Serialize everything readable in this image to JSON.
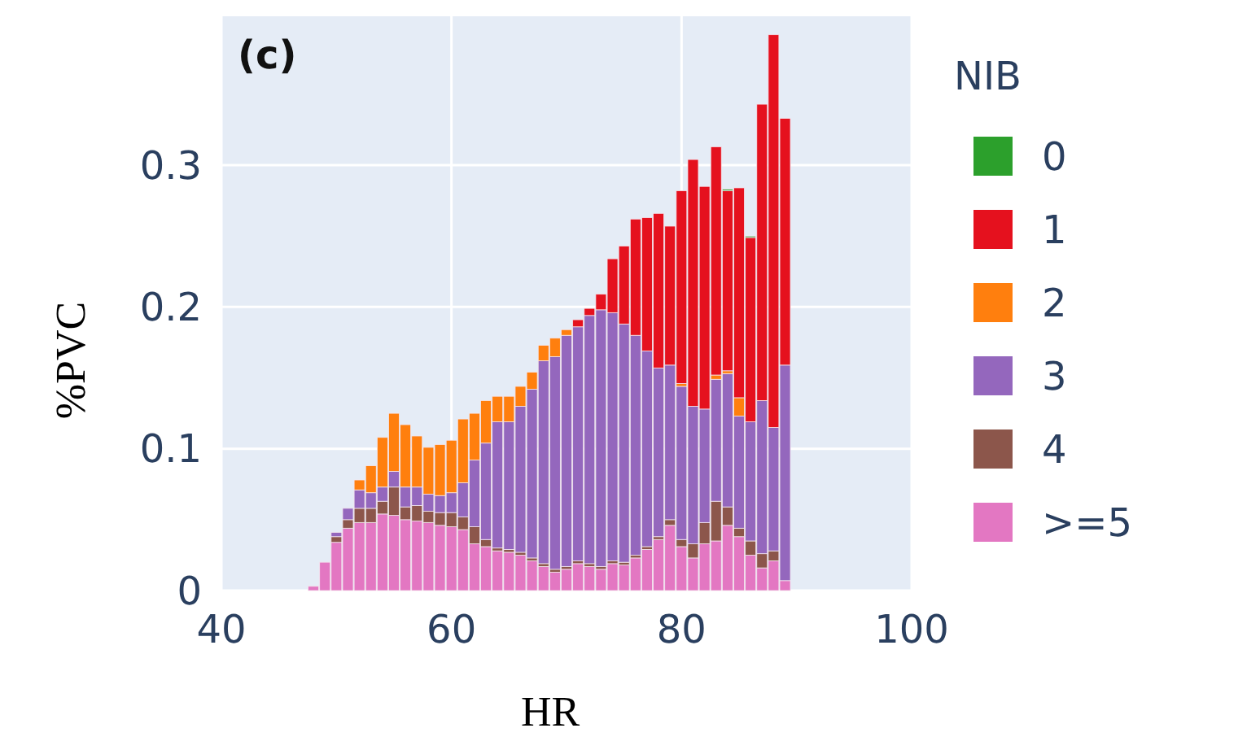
{
  "chart_data": {
    "type": "bar",
    "title": "(c)",
    "xlabel": "HR",
    "ylabel": "%PVC",
    "legend_title": "NIB",
    "stacked": true,
    "legend": "right",
    "grid": true,
    "x": [
      48,
      49,
      50,
      51,
      52,
      53,
      54,
      55,
      56,
      57,
      58,
      59,
      60,
      61,
      62,
      63,
      64,
      65,
      66,
      67,
      68,
      69,
      70,
      71,
      72,
      73,
      74,
      75,
      76,
      77,
      78,
      79,
      80,
      81,
      82,
      83,
      84,
      85,
      86,
      87,
      88,
      89
    ],
    "xlim": [
      40,
      100
    ],
    "xticks": [
      40,
      60,
      80,
      100
    ],
    "ylim": [
      0,
      0.405
    ],
    "yticks": [
      0,
      0.1,
      0.2,
      0.3
    ],
    "series": [
      {
        "name": ">=5",
        "color": "#e377c2",
        "values": [
          0.003,
          0.02,
          0.034,
          0.044,
          0.048,
          0.048,
          0.054,
          0.053,
          0.05,
          0.049,
          0.048,
          0.046,
          0.045,
          0.043,
          0.033,
          0.031,
          0.028,
          0.027,
          0.025,
          0.021,
          0.017,
          0.013,
          0.015,
          0.019,
          0.017,
          0.015,
          0.019,
          0.018,
          0.023,
          0.029,
          0.036,
          0.046,
          0.031,
          0.023,
          0.033,
          0.035,
          0.046,
          0.038,
          0.025,
          0.016,
          0.021,
          0.007
        ]
      },
      {
        "name": "4",
        "color": "#8c564b",
        "values": [
          0,
          0,
          0.004,
          0.006,
          0.01,
          0.01,
          0.009,
          0.02,
          0.009,
          0.011,
          0.008,
          0.009,
          0.01,
          0.009,
          0.012,
          0.005,
          0.002,
          0.002,
          0.002,
          0.002,
          0.002,
          0.002,
          0.002,
          0.002,
          0.002,
          0.002,
          0.002,
          0.002,
          0.002,
          0.002,
          0.002,
          0.004,
          0.005,
          0.01,
          0.015,
          0.028,
          0.013,
          0.006,
          0.01,
          0.01,
          0.007,
          0
        ]
      },
      {
        "name": "3",
        "color": "#9467bd",
        "values": [
          0,
          0,
          0.003,
          0.008,
          0.013,
          0.011,
          0.01,
          0.011,
          0.014,
          0.013,
          0.012,
          0.012,
          0.014,
          0.024,
          0.047,
          0.068,
          0.089,
          0.09,
          0.103,
          0.119,
          0.143,
          0.15,
          0.163,
          0.165,
          0.175,
          0.181,
          0.175,
          0.168,
          0.155,
          0.138,
          0.119,
          0.109,
          0.108,
          0.097,
          0.08,
          0.086,
          0.094,
          0.079,
          0.084,
          0.108,
          0.087,
          0.152
        ]
      },
      {
        "name": "2",
        "color": "#ff7f0e",
        "values": [
          0,
          0,
          0,
          0,
          0.007,
          0.019,
          0.035,
          0.041,
          0.044,
          0.036,
          0.033,
          0.036,
          0.037,
          0.045,
          0.033,
          0.03,
          0.018,
          0.018,
          0.014,
          0.012,
          0.011,
          0.013,
          0.004,
          null,
          null,
          0,
          0,
          0,
          0,
          0,
          0,
          0,
          0.002,
          0,
          0,
          0.003,
          0.002,
          0.013,
          0,
          0,
          0,
          0
        ]
      },
      {
        "name": "1",
        "color": "#e5111e",
        "values": [
          0,
          0,
          0,
          0,
          0,
          0,
          0,
          0,
          0,
          0,
          0,
          0,
          0,
          0,
          0,
          0,
          0,
          0,
          0,
          0,
          0,
          0,
          0,
          0.005,
          0.005,
          0.011,
          0.038,
          0.055,
          0.082,
          0.094,
          0.109,
          0.098,
          0.136,
          0.174,
          0.157,
          0.161,
          0.127,
          0.148,
          0.13,
          0.209,
          0.277,
          0.174
        ]
      },
      {
        "name": "0",
        "color": "#2ca02c",
        "values": [
          0,
          0,
          0,
          0,
          0,
          0,
          0,
          0,
          0,
          0,
          0,
          0,
          0,
          0,
          0,
          0,
          0,
          0,
          0,
          0,
          0,
          0,
          0,
          0,
          0,
          0,
          0,
          0,
          0,
          0,
          0,
          0,
          0,
          0,
          0,
          0,
          0.001,
          0,
          0.001,
          0,
          0,
          0
        ]
      }
    ]
  }
}
